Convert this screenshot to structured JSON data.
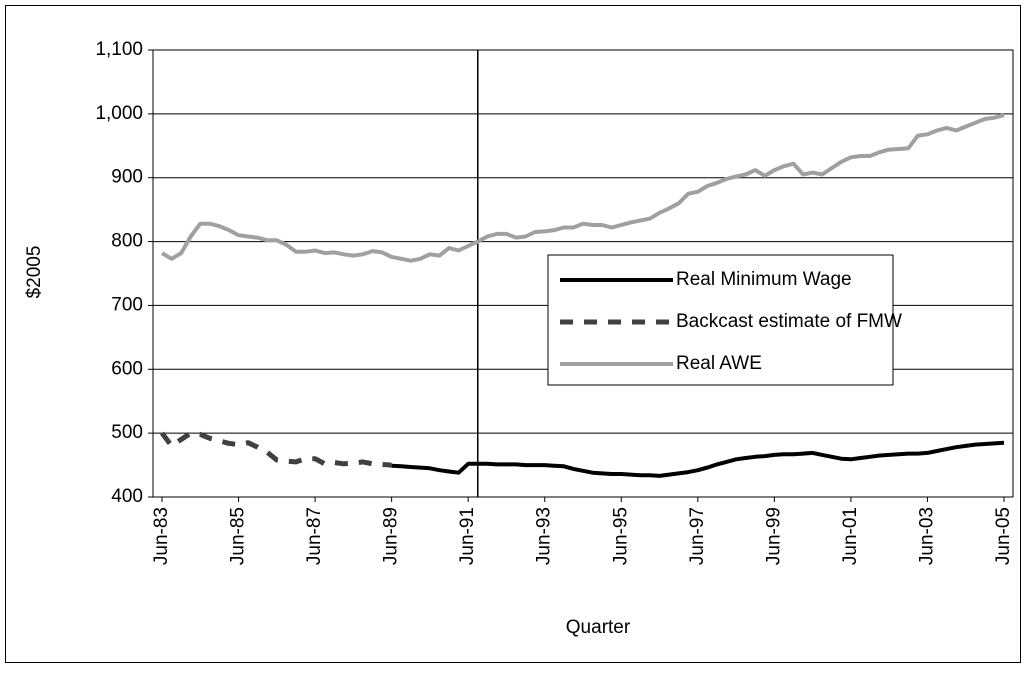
{
  "chart_data": {
    "type": "line",
    "y_label": "$2005",
    "x_label": "Quarter",
    "categories": [
      "Jun-83",
      null,
      null,
      null,
      null,
      null,
      null,
      null,
      "Jun-85",
      null,
      null,
      null,
      null,
      null,
      null,
      null,
      "Jun-87",
      null,
      null,
      null,
      null,
      null,
      null,
      null,
      "Jun-89",
      null,
      null,
      null,
      null,
      null,
      null,
      null,
      "Jun-91",
      null,
      null,
      null,
      null,
      null,
      null,
      null,
      "Jun-93",
      null,
      null,
      null,
      null,
      null,
      null,
      null,
      "Jun-95",
      null,
      null,
      null,
      null,
      null,
      null,
      null,
      "Jun-97",
      null,
      null,
      null,
      null,
      null,
      null,
      null,
      "Jun-99",
      null,
      null,
      null,
      null,
      null,
      null,
      null,
      "Jun-01",
      null,
      null,
      null,
      null,
      null,
      null,
      null,
      "Jun-03",
      null,
      null,
      null,
      null,
      null,
      null,
      null,
      "Jun-05"
    ],
    "series": [
      {
        "name": "Real Minimum Wage",
        "color": "#000000",
        "dashed": false,
        "values": [
          null,
          null,
          null,
          null,
          null,
          null,
          null,
          null,
          null,
          null,
          null,
          null,
          null,
          null,
          null,
          null,
          null,
          null,
          null,
          null,
          null,
          null,
          null,
          null,
          449,
          448,
          447,
          446,
          445,
          442,
          440,
          438,
          452,
          452,
          452,
          451,
          451,
          451,
          450,
          450,
          450,
          449,
          448,
          444,
          441,
          438,
          437,
          436,
          436,
          435,
          434,
          434,
          433,
          435,
          437,
          439,
          442,
          446,
          451,
          455,
          459,
          461,
          463,
          464,
          466,
          467,
          467,
          468,
          469,
          466,
          463,
          460,
          459,
          461,
          463,
          465,
          466,
          467,
          468,
          468,
          469,
          472,
          475,
          478,
          480,
          482,
          483,
          484,
          485
        ]
      },
      {
        "name": "Backcast estimate of FMW",
        "color": "#404040",
        "dashed": true,
        "values": [
          500,
          480,
          490,
          500,
          498,
          492,
          488,
          484,
          482,
          485,
          478,
          470,
          458,
          456,
          455,
          460,
          460,
          452,
          454,
          452,
          453,
          455,
          452,
          451,
          450,
          null,
          null,
          null,
          null,
          null,
          null,
          null,
          null,
          null,
          null,
          null,
          null,
          null,
          null,
          null,
          null,
          null,
          null,
          null,
          null,
          null,
          null,
          null,
          null,
          null,
          null,
          null,
          null,
          null,
          null,
          null,
          null,
          null,
          null,
          null,
          null,
          null,
          null,
          null,
          null,
          null,
          null,
          null,
          null,
          null,
          null,
          null,
          null,
          null,
          null,
          null,
          null,
          null,
          null,
          null,
          null,
          null,
          null,
          null,
          null,
          null,
          null,
          null,
          null
        ]
      },
      {
        "name": "Real AWE",
        "color": "#a0a0a0",
        "dashed": false,
        "values": [
          782,
          773,
          782,
          808,
          828,
          828,
          824,
          818,
          810,
          808,
          806,
          802,
          802,
          795,
          784,
          784,
          786,
          782,
          783,
          780,
          778,
          780,
          785,
          783,
          776,
          773,
          770,
          773,
          780,
          778,
          790,
          786,
          793,
          800,
          808,
          812,
          812,
          806,
          808,
          815,
          816,
          818,
          822,
          822,
          828,
          826,
          826,
          822,
          826,
          830,
          833,
          836,
          845,
          852,
          860,
          875,
          878,
          887,
          892,
          898,
          902,
          905,
          912,
          903,
          912,
          918,
          922,
          905,
          908,
          905,
          915,
          925,
          932,
          934,
          934,
          940,
          944,
          945,
          946,
          966,
          968,
          974,
          978,
          974,
          980,
          986,
          992,
          994,
          998
        ]
      }
    ],
    "vline_index": 33,
    "ylim": [
      400,
      1100
    ],
    "yticks": [
      400,
      500,
      600,
      700,
      800,
      900,
      {
        "value": 1000,
        "label": "1,000"
      },
      {
        "value": 1100,
        "label": "1,100"
      }
    ],
    "grid": true
  }
}
